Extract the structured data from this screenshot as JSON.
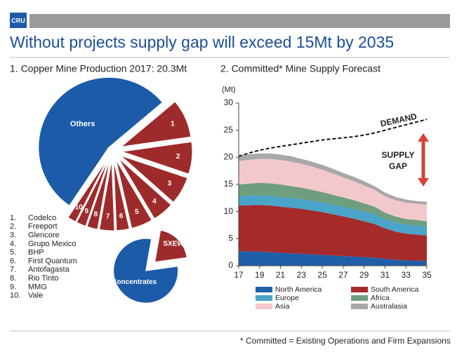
{
  "header": {
    "logo": "CRU",
    "title": "Without projects supply gap will exceed 15Mt by 2035"
  },
  "chart_data": [
    {
      "type": "pie",
      "title": "1. Copper Mine Production 2017: 20.3Mt",
      "categories": [
        "1",
        "2",
        "3",
        "4",
        "5",
        "6",
        "7",
        "8",
        "9",
        "10",
        "Others"
      ],
      "values": [
        1.8,
        1.5,
        1.3,
        1.0,
        1.0,
        0.6,
        0.7,
        0.5,
        0.45,
        0.4,
        11.05
      ],
      "colors": [
        "#9e2b2b",
        "#9e2b2b",
        "#9e2b2b",
        "#9e2b2b",
        "#9e2b2b",
        "#9e2b2b",
        "#9e2b2b",
        "#9e2b2b",
        "#9e2b2b",
        "#9e2b2b",
        "#1c5ba8"
      ],
      "legend_items": [
        {
          "number": "1.",
          "name": "Codelco"
        },
        {
          "number": "2.",
          "name": "Freeport"
        },
        {
          "number": "3.",
          "name": "Glencore"
        },
        {
          "number": "4.",
          "name": "Grupo Mexico"
        },
        {
          "number": "5.",
          "name": "BHP"
        },
        {
          "number": "6.",
          "name": "First Quantum"
        },
        {
          "number": "7.",
          "name": "Antofagasta"
        },
        {
          "number": "8.",
          "name": "Rio Tinto"
        },
        {
          "number": "9.",
          "name": "MMG"
        },
        {
          "number": "10.",
          "name": "Vale"
        }
      ]
    },
    {
      "type": "pie",
      "categories": [
        "Concentrates",
        "SXEW"
      ],
      "values": [
        80,
        20
      ],
      "colors": [
        "#1c5ba8",
        "#9e2b2b"
      ]
    },
    {
      "type": "area",
      "title": "2. Committed* Mine Supply Forecast",
      "y_label": "(Mt)",
      "x": [
        17,
        18,
        19,
        20,
        21,
        22,
        23,
        24,
        25,
        26,
        27,
        28,
        29,
        30,
        31,
        32,
        33,
        34,
        35
      ],
      "xlim": [
        17,
        35
      ],
      "xticks": [
        17,
        19,
        21,
        23,
        25,
        27,
        29,
        31,
        33,
        35
      ],
      "ylim": [
        0,
        30
      ],
      "yticks": [
        0,
        5,
        10,
        15,
        20,
        25,
        30
      ],
      "series": [
        {
          "name": "North America",
          "color": "#1f5fa8",
          "values": [
            2.7,
            2.65,
            2.6,
            2.5,
            2.4,
            2.3,
            2.2,
            2.1,
            2.0,
            1.9,
            1.8,
            1.7,
            1.6,
            1.5,
            1.3,
            1.1,
            1.0,
            0.95,
            0.9
          ]
        },
        {
          "name": "South America",
          "color": "#a52a2a",
          "values": [
            8.4,
            8.5,
            8.6,
            8.6,
            8.5,
            8.4,
            8.3,
            8.1,
            7.9,
            7.6,
            7.3,
            7.0,
            6.6,
            6.2,
            5.6,
            5.2,
            4.9,
            4.8,
            4.7
          ]
        },
        {
          "name": "Europe",
          "color": "#4aa3c8",
          "values": [
            1.8,
            1.8,
            1.8,
            1.8,
            1.8,
            1.8,
            1.8,
            1.8,
            1.8,
            1.8,
            1.8,
            1.8,
            1.8,
            1.8,
            1.7,
            1.7,
            1.7,
            1.7,
            1.6
          ]
        },
        {
          "name": "Africa",
          "color": "#6e9e7e",
          "values": [
            2.1,
            2.2,
            2.3,
            2.3,
            2.3,
            2.2,
            2.1,
            2.0,
            1.9,
            1.8,
            1.7,
            1.6,
            1.5,
            1.4,
            1.2,
            1.1,
            1.0,
            1.0,
            1.0
          ]
        },
        {
          "name": "Asia",
          "color": "#f2c8cc",
          "values": [
            4.3,
            4.4,
            4.4,
            4.5,
            4.5,
            4.5,
            4.4,
            4.3,
            4.1,
            3.9,
            3.7,
            3.5,
            3.3,
            3.1,
            3.0,
            3.0,
            3.0,
            3.0,
            3.1
          ]
        },
        {
          "name": "Australasia",
          "color": "#a8a8a8",
          "values": [
            1.0,
            1.0,
            1.0,
            1.0,
            1.0,
            1.0,
            0.9,
            0.9,
            0.9,
            0.9,
            0.8,
            0.8,
            0.8,
            0.7,
            0.7,
            0.6,
            0.6,
            0.5,
            0.5
          ]
        }
      ],
      "demand": {
        "name": "DEMAND",
        "values": [
          20.2,
          20.8,
          21.3,
          21.7,
          22.0,
          22.3,
          22.6,
          22.9,
          23.2,
          23.4,
          23.6,
          23.8,
          24.1,
          24.5,
          25.0,
          25.5,
          26.0,
          26.5,
          27.0
        ]
      },
      "gap_label": [
        "SUPPLY",
        "GAP"
      ]
    }
  ],
  "footnote": "* Committed = Existing Operations and Firm Expansions"
}
